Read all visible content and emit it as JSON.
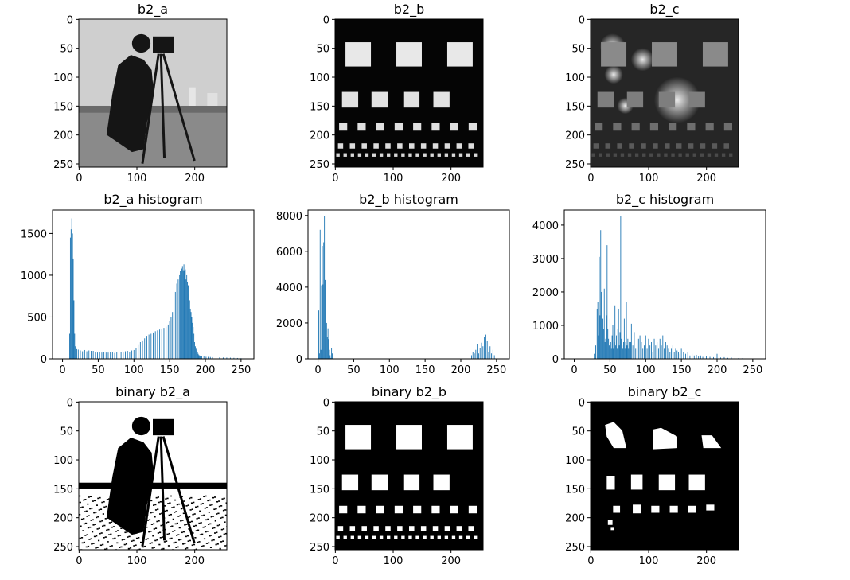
{
  "figure": {
    "colors": {
      "bar": "#1f77b4",
      "axes": "#000000",
      "background": "#ffffff"
    }
  },
  "chart_data": [
    {
      "type": "heatmap",
      "id": "b2_a",
      "title": "b2_a",
      "content": "grayscale photo: cameraman",
      "xlim": [
        0,
        255
      ],
      "ylim": [
        255,
        0
      ],
      "xticks": [
        0,
        100,
        200
      ],
      "yticks": [
        0,
        50,
        100,
        150,
        200,
        250
      ]
    },
    {
      "type": "heatmap",
      "id": "b2_b",
      "title": "b2_b",
      "content": "test pattern: bright squares on black background",
      "xlim": [
        0,
        255
      ],
      "ylim": [
        255,
        0
      ],
      "xticks": [
        0,
        100,
        200
      ],
      "yticks": [
        0,
        50,
        100,
        150,
        200,
        250
      ]
    },
    {
      "type": "heatmap",
      "id": "b2_c",
      "title": "b2_c",
      "content": "test pattern with uneven illumination and blurred spots",
      "xlim": [
        0,
        255
      ],
      "ylim": [
        255,
        0
      ],
      "xticks": [
        0,
        100,
        200
      ],
      "yticks": [
        0,
        50,
        100,
        150,
        200,
        250
      ]
    },
    {
      "type": "bar",
      "id": "hist_a",
      "title": "b2_a histogram",
      "xlim": [
        -14,
        268
      ],
      "ylim": [
        0,
        1780
      ],
      "xticks": [
        0,
        50,
        100,
        150,
        200,
        250
      ],
      "yticks": [
        0,
        500,
        1000,
        1500
      ],
      "x": [
        10,
        11,
        12,
        13,
        14,
        15,
        16,
        17,
        18,
        19,
        20,
        22,
        25,
        28,
        31,
        34,
        37,
        40,
        43,
        46,
        49,
        52,
        55,
        58,
        61,
        64,
        67,
        70,
        73,
        76,
        79,
        82,
        85,
        88,
        91,
        94,
        97,
        100,
        103,
        106,
        109,
        112,
        115,
        118,
        121,
        124,
        127,
        130,
        133,
        136,
        139,
        142,
        145,
        148,
        150,
        152,
        154,
        156,
        158,
        160,
        162,
        164,
        165,
        166,
        167,
        168,
        169,
        170,
        171,
        172,
        173,
        174,
        175,
        176,
        177,
        178,
        179,
        180,
        181,
        182,
        183,
        184,
        185,
        186,
        187,
        188,
        189,
        190,
        191,
        192,
        193,
        195,
        198,
        201,
        204,
        207,
        210,
        215,
        220,
        225,
        230,
        235,
        240,
        245,
        250
      ],
      "values": [
        300,
        1450,
        1550,
        1680,
        1500,
        1200,
        700,
        300,
        150,
        130,
        115,
        110,
        100,
        90,
        105,
        90,
        100,
        95,
        95,
        80,
        75,
        80,
        75,
        80,
        75,
        75,
        80,
        85,
        70,
        80,
        70,
        80,
        75,
        90,
        95,
        80,
        100,
        105,
        130,
        165,
        200,
        220,
        245,
        275,
        290,
        300,
        315,
        330,
        340,
        350,
        355,
        370,
        385,
        410,
        450,
        500,
        560,
        650,
        800,
        900,
        950,
        1000,
        1050,
        1220,
        1080,
        1110,
        1060,
        1130,
        1060,
        1070,
        950,
        1000,
        920,
        880,
        780,
        700,
        600,
        560,
        500,
        430,
        380,
        300,
        200,
        150,
        120,
        100,
        80,
        60,
        45,
        40,
        35,
        30,
        28,
        25,
        24,
        22,
        20,
        20,
        18,
        16,
        15,
        14,
        12,
        10,
        8
      ]
    },
    {
      "type": "bar",
      "id": "hist_b",
      "title": "b2_b histogram",
      "xlim": [
        -14,
        268
      ],
      "ylim": [
        0,
        8300
      ],
      "xticks": [
        0,
        50,
        100,
        150,
        200,
        250
      ],
      "yticks": [
        0,
        2000,
        4000,
        6000,
        8000
      ],
      "x": [
        0,
        1,
        2,
        3,
        4,
        5,
        6,
        7,
        8,
        9,
        10,
        11,
        12,
        13,
        14,
        15,
        16,
        17,
        18,
        19,
        20,
        215,
        217,
        219,
        221,
        223,
        225,
        227,
        229,
        231,
        233,
        235,
        237,
        239,
        241,
        243,
        245,
        247
      ],
      "values": [
        800,
        2700,
        300,
        7200,
        500,
        4100,
        6300,
        4150,
        6500,
        7950,
        4400,
        2500,
        2000,
        1200,
        1700,
        1100,
        500,
        200,
        50,
        600,
        300,
        200,
        400,
        300,
        500,
        800,
        300,
        600,
        900,
        700,
        1200,
        1350,
        1000,
        400,
        700,
        300,
        500,
        200
      ]
    },
    {
      "type": "bar",
      "id": "hist_c",
      "title": "b2_c histogram",
      "xlim": [
        -14,
        268
      ],
      "ylim": [
        0,
        4450
      ],
      "xticks": [
        0,
        50,
        100,
        150,
        200,
        250
      ],
      "yticks": [
        0,
        1000,
        2000,
        3000,
        4000
      ],
      "x": [
        28,
        30,
        32,
        33,
        34,
        35,
        36,
        37,
        38,
        39,
        40,
        41,
        42,
        43,
        44,
        45,
        46,
        47,
        48,
        49,
        50,
        51,
        52,
        53,
        54,
        55,
        56,
        57,
        58,
        59,
        60,
        61,
        62,
        63,
        64,
        65,
        66,
        67,
        68,
        69,
        70,
        71,
        72,
        73,
        74,
        75,
        76,
        77,
        78,
        79,
        80,
        82,
        84,
        86,
        88,
        90,
        92,
        94,
        96,
        98,
        100,
        102,
        104,
        106,
        108,
        110,
        112,
        114,
        116,
        118,
        120,
        122,
        124,
        126,
        128,
        130,
        132,
        134,
        136,
        138,
        140,
        142,
        144,
        146,
        148,
        150,
        153,
        156,
        159,
        162,
        165,
        168,
        171,
        174,
        177,
        180,
        185,
        190,
        195,
        200,
        205,
        210,
        215,
        220,
        225,
        230,
        235,
        240
      ],
      "values": [
        150,
        400,
        1500,
        1700,
        700,
        3050,
        1300,
        3850,
        2000,
        600,
        1200,
        900,
        2100,
        500,
        600,
        1300,
        3400,
        900,
        600,
        400,
        1200,
        500,
        300,
        700,
        1000,
        300,
        500,
        1600,
        400,
        700,
        300,
        900,
        1500,
        400,
        800,
        4280,
        600,
        400,
        300,
        500,
        1200,
        300,
        500,
        1700,
        400,
        600,
        300,
        500,
        200,
        500,
        1050,
        400,
        800,
        300,
        500,
        600,
        700,
        500,
        300,
        400,
        700,
        300,
        600,
        400,
        500,
        200,
        600,
        400,
        500,
        300,
        600,
        400,
        700,
        300,
        500,
        400,
        300,
        200,
        300,
        400,
        200,
        300,
        250,
        200,
        150,
        300,
        200,
        150,
        200,
        100,
        150,
        100,
        120,
        80,
        100,
        60,
        80,
        60,
        50,
        150,
        40,
        50,
        30,
        40,
        30,
        20,
        15,
        10
      ]
    },
    {
      "type": "heatmap",
      "id": "bin_a",
      "title": "binary b2_a",
      "content": "binary thresholded cameraman",
      "xlim": [
        0,
        255
      ],
      "ylim": [
        255,
        0
      ],
      "xticks": [
        0,
        100,
        200
      ],
      "yticks": [
        0,
        50,
        100,
        150,
        200,
        250
      ]
    },
    {
      "type": "heatmap",
      "id": "bin_b",
      "title": "binary b2_b",
      "content": "binary test pattern: white squares on black",
      "xlim": [
        0,
        255
      ],
      "ylim": [
        255,
        0
      ],
      "xticks": [
        0,
        100,
        200
      ],
      "yticks": [
        0,
        50,
        100,
        150,
        200,
        250
      ]
    },
    {
      "type": "heatmap",
      "id": "bin_c",
      "title": "binary b2_c",
      "content": "binary thresholded uneven test pattern",
      "xlim": [
        0,
        255
      ],
      "ylim": [
        255,
        0
      ],
      "xticks": [
        0,
        100,
        200
      ],
      "yticks": [
        0,
        50,
        100,
        150,
        200,
        250
      ]
    }
  ]
}
